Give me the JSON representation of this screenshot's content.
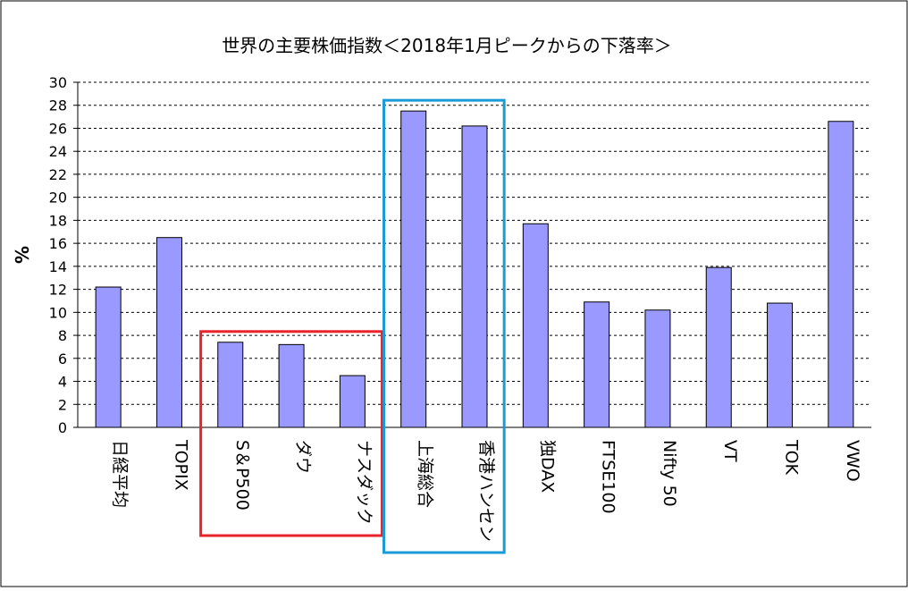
{
  "chart_data": {
    "type": "bar",
    "title": "世界の主要株価指数＜2018年1月ピークからの下落率＞",
    "xlabel": "",
    "ylabel": "%",
    "ylim": [
      0,
      30
    ],
    "yticks": [
      0,
      2,
      4,
      6,
      8,
      10,
      12,
      14,
      16,
      18,
      20,
      22,
      24,
      26,
      28,
      30
    ],
    "grid": true,
    "legend": "none",
    "categories": [
      "日経平均",
      "TOPIX",
      "S＆P500",
      "ダウ",
      "ナスダック",
      "上海総合",
      "香港ハンセン",
      "独DAX",
      "FTSE100",
      "Nifty 50",
      "VT",
      "TOK",
      "VWO"
    ],
    "values": [
      12.2,
      16.5,
      7.4,
      7.2,
      4.5,
      27.5,
      26.2,
      17.7,
      10.9,
      10.2,
      13.9,
      10.8,
      26.6
    ],
    "bar_color": "#9999ff",
    "highlight_groups": [
      {
        "categories": [
          "S＆P500",
          "ダウ",
          "ナスダック"
        ],
        "color": "#e8232a"
      },
      {
        "categories": [
          "上海総合",
          "香港ハンセン"
        ],
        "color": "#1a9ad6"
      }
    ]
  }
}
